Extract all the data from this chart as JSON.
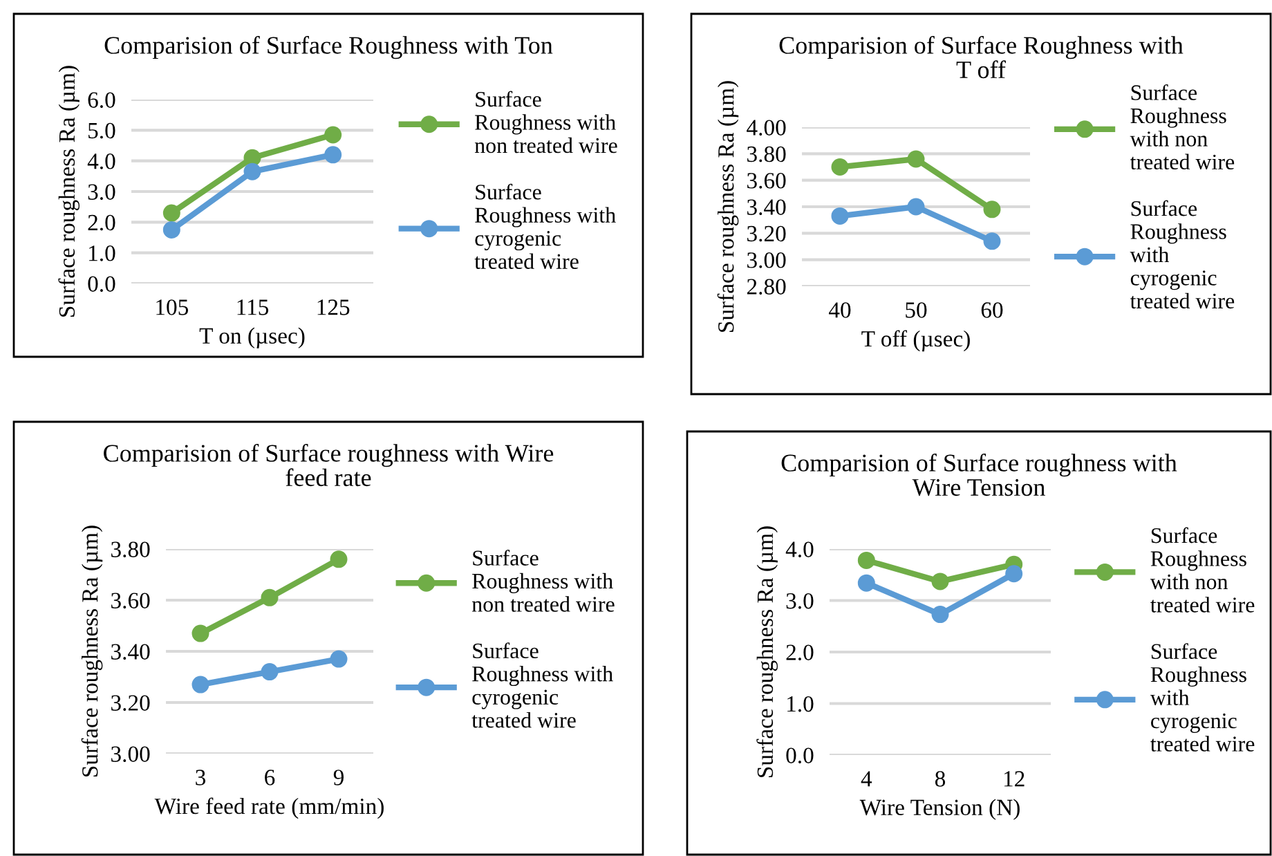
{
  "chart_data": [
    {
      "type": "line",
      "title": "Comparision of Surface Roughness with Ton",
      "xlabel": "T on (µsec)",
      "ylabel": "Surface roughness Ra (µm)",
      "categories": [
        "105",
        "115",
        "125"
      ],
      "series": [
        {
          "name": "Surface Roughness with non treated wire",
          "color": "#70ad47",
          "values": [
            2.3,
            4.1,
            4.85
          ]
        },
        {
          "name": "Surface Roughness with cyrogenic treated wire",
          "color": "#5b9bd5",
          "values": [
            1.75,
            3.65,
            4.2
          ]
        }
      ],
      "ylim": [
        0,
        6
      ],
      "yticks": [
        {
          "value": 0,
          "label": "0.0"
        },
        {
          "value": 1,
          "label": "1.0"
        },
        {
          "value": 2,
          "label": "2.0"
        },
        {
          "value": 3,
          "label": "3.0"
        },
        {
          "value": 4,
          "label": "4.0"
        },
        {
          "value": 5,
          "label": "5.0"
        },
        {
          "value": 6,
          "label": "6.0"
        }
      ],
      "grid": "y",
      "legend": "right",
      "marker": "circle",
      "line_style": "solid"
    },
    {
      "type": "line",
      "title": "Comparision of Surface Roughness with T off",
      "xlabel": "T off (µsec)",
      "ylabel": "Surface roughness Ra (µm)",
      "categories": [
        "40",
        "50",
        "60"
      ],
      "series": [
        {
          "name": "Surface Roughness with non treated wire",
          "color": "#70ad47",
          "values": [
            3.7,
            3.76,
            3.38
          ]
        },
        {
          "name": "Surface Roughness with cyrogenic treated wire",
          "color": "#5b9bd5",
          "values": [
            3.33,
            3.4,
            3.14
          ]
        }
      ],
      "ylim": [
        2.8,
        4.0
      ],
      "yticks": [
        {
          "value": 2.8,
          "label": "2.80"
        },
        {
          "value": 3.0,
          "label": "3.00"
        },
        {
          "value": 3.2,
          "label": "3.20"
        },
        {
          "value": 3.4,
          "label": "3.40"
        },
        {
          "value": 3.6,
          "label": "3.60"
        },
        {
          "value": 3.8,
          "label": "3.80"
        },
        {
          "value": 4.0,
          "label": "4.00"
        }
      ],
      "grid": "y",
      "legend": "right",
      "marker": "circle",
      "line_style": "solid"
    },
    {
      "type": "line",
      "title": "Comparision of Surface roughness with Wire feed rate",
      "xlabel": "Wire feed rate (mm/min)",
      "ylabel": "Surface roughness Ra (µm)",
      "categories": [
        "3",
        "6",
        "9"
      ],
      "series": [
        {
          "name": "Surface Roughness with non treated wire",
          "color": "#70ad47",
          "values": [
            3.47,
            3.61,
            3.76
          ]
        },
        {
          "name": "Surface Roughness with cyrogenic treated wire",
          "color": "#5b9bd5",
          "values": [
            3.27,
            3.32,
            3.37
          ]
        }
      ],
      "ylim": [
        3.0,
        3.8
      ],
      "yticks": [
        {
          "value": 3.0,
          "label": "3.00"
        },
        {
          "value": 3.2,
          "label": "3.20"
        },
        {
          "value": 3.4,
          "label": "3.40"
        },
        {
          "value": 3.6,
          "label": "3.60"
        },
        {
          "value": 3.8,
          "label": "3.80"
        }
      ],
      "grid": "y",
      "legend": "right",
      "marker": "circle",
      "line_style": "solid"
    },
    {
      "type": "line",
      "title": "Comparision of Surface roughness with Wire Tension",
      "xlabel": "Wire Tension (N)",
      "ylabel": "Surface roughness Ra (µm)",
      "categories": [
        "4",
        "8",
        "12"
      ],
      "series": [
        {
          "name": "Surface Roughness with non treated wire",
          "color": "#70ad47",
          "values": [
            3.78,
            3.37,
            3.7
          ]
        },
        {
          "name": "Surface Roughness with cyrogenic treated wire",
          "color": "#5b9bd5",
          "values": [
            3.34,
            2.73,
            3.52
          ]
        }
      ],
      "ylim": [
        0,
        4
      ],
      "yticks": [
        {
          "value": 0,
          "label": "0.0"
        },
        {
          "value": 1,
          "label": "1.0"
        },
        {
          "value": 2,
          "label": "2.0"
        },
        {
          "value": 3,
          "label": "3.0"
        },
        {
          "value": 4,
          "label": "4.0"
        }
      ],
      "grid": "y",
      "legend": "right",
      "marker": "circle",
      "line_style": "solid"
    }
  ]
}
